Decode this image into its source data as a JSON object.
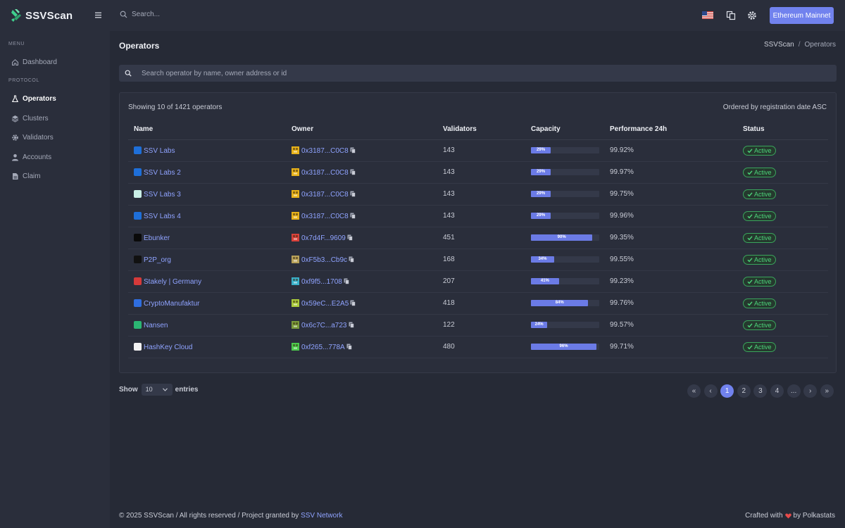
{
  "app": {
    "name": "SSVScan"
  },
  "sidebar": {
    "menu_label": "MENU",
    "protocol_label": "PROTOCOL",
    "items": [
      {
        "label": "Dashboard",
        "icon": "home-icon"
      },
      {
        "label": "Operators",
        "icon": "flask-icon",
        "active": true
      },
      {
        "label": "Clusters",
        "icon": "layers-icon"
      },
      {
        "label": "Validators",
        "icon": "gear-icon"
      },
      {
        "label": "Accounts",
        "icon": "user-icon"
      },
      {
        "label": "Claim",
        "icon": "document-icon"
      }
    ]
  },
  "topbar": {
    "search_placeholder": "Search...",
    "network_label": "Ethereum Mainnet"
  },
  "page": {
    "title": "Operators",
    "breadcrumb": {
      "root": "SSVScan",
      "separator": "/",
      "current": "Operators"
    },
    "search_placeholder": "Search operator by name, owner address or id"
  },
  "table": {
    "showing": "Showing 10 of 1421 operators",
    "ordered": "Ordered by registration date ASC",
    "headers": {
      "name": "Name",
      "owner": "Owner",
      "validators": "Validators",
      "capacity": "Capacity",
      "performance": "Performance 24h",
      "status": "Status"
    },
    "rows": [
      {
        "name": "SSV Labs",
        "owner": "0x3187...C0C8",
        "validators": "143",
        "capacity": 29,
        "capacity_label": "29%",
        "performance": "99.92%",
        "status": "Active",
        "logo_color": "#1e6fd9",
        "avatar_color": "#e8b21a"
      },
      {
        "name": "SSV Labs 2",
        "owner": "0x3187...C0C8",
        "validators": "143",
        "capacity": 29,
        "capacity_label": "29%",
        "performance": "99.97%",
        "status": "Active",
        "logo_color": "#1e6fd9",
        "avatar_color": "#e8b21a"
      },
      {
        "name": "SSV Labs 3",
        "owner": "0x3187...C0C8",
        "validators": "143",
        "capacity": 29,
        "capacity_label": "29%",
        "performance": "99.75%",
        "status": "Active",
        "logo_color": "#c9efe6",
        "avatar_color": "#e8b21a"
      },
      {
        "name": "SSV Labs 4",
        "owner": "0x3187...C0C8",
        "validators": "143",
        "capacity": 29,
        "capacity_label": "29%",
        "performance": "99.96%",
        "status": "Active",
        "logo_color": "#1e6fd9",
        "avatar_color": "#e8b21a"
      },
      {
        "name": "Ebunker",
        "owner": "0x7d4F...9609",
        "validators": "451",
        "capacity": 90,
        "capacity_label": "90%",
        "performance": "99.35%",
        "status": "Active",
        "logo_color": "#0a0a0a",
        "avatar_color": "#d9413a"
      },
      {
        "name": "P2P_org",
        "owner": "0xF5b3...Cb9c",
        "validators": "168",
        "capacity": 34,
        "capacity_label": "34%",
        "performance": "99.55%",
        "status": "Active",
        "logo_color": "#111111",
        "avatar_color": "#b8a25a"
      },
      {
        "name": "Stakely | Germany",
        "owner": "0xf9f5...1708",
        "validators": "207",
        "capacity": 41,
        "capacity_label": "41%",
        "performance": "99.23%",
        "status": "Active",
        "logo_color": "#d63a3a",
        "avatar_color": "#3ab0c9"
      },
      {
        "name": "CryptoManufaktur",
        "owner": "0x59eC...E2A5",
        "validators": "418",
        "capacity": 84,
        "capacity_label": "84%",
        "performance": "99.76%",
        "status": "Active",
        "logo_color": "#2f6ee0",
        "avatar_color": "#a9c93a"
      },
      {
        "name": "Nansen",
        "owner": "0x6c7C...a723",
        "validators": "122",
        "capacity": 24,
        "capacity_label": "24%",
        "performance": "99.57%",
        "status": "Active",
        "logo_color": "#2bb673",
        "avatar_color": "#7a9a3a"
      },
      {
        "name": "HashKey Cloud",
        "owner": "0xf265...778A",
        "validators": "480",
        "capacity": 96,
        "capacity_label": "96%",
        "performance": "99.71%",
        "status": "Active",
        "logo_color": "#f2f2f2",
        "avatar_color": "#4cc94c"
      }
    ]
  },
  "pagination": {
    "show_label": "Show",
    "entries_value": "10",
    "entries_label": "entries",
    "buttons": [
      "«",
      "‹",
      "1",
      "2",
      "3",
      "4",
      "...",
      "›",
      "»"
    ],
    "active_page": "1"
  },
  "footer": {
    "left_text": "© 2025 SSVScan / All rights reserved / Project granted by",
    "left_link": "SSV Network",
    "right_prefix": "Crafted with",
    "right_suffix": "by Polkastats",
    "heart_color": "#e84a4a"
  },
  "colors": {
    "accent": "#7182ee",
    "link": "#8fa3ff",
    "active_status": "#4cd47a"
  }
}
